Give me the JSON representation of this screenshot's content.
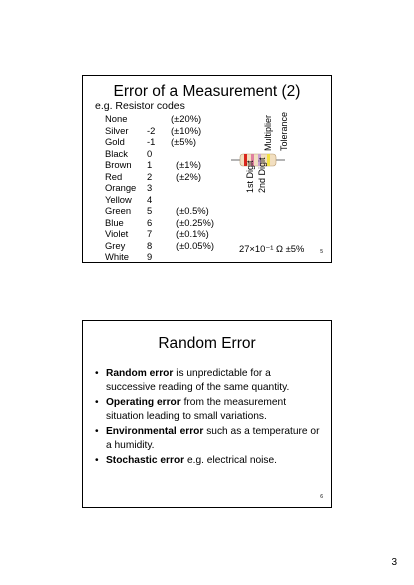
{
  "slide1": {
    "title": "Error of a Measurement (2)",
    "subtitle": "e.g. Resistor codes",
    "codes": [
      {
        "name": "None",
        "digit": "",
        "tolerance": "(±20%)"
      },
      {
        "name": "Silver",
        "digit": "-2",
        "tolerance": "(±10%)"
      },
      {
        "name": "Gold",
        "digit": "-1",
        "tolerance": "(±5%)"
      },
      {
        "name": "Black",
        "digit": "0",
        "tolerance": ""
      },
      {
        "name": "Brown",
        "digit": "1",
        "tolerance": "(±1%)"
      },
      {
        "name": "Red",
        "digit": "2",
        "tolerance": "(±2%)"
      },
      {
        "name": "Orange",
        "digit": "3",
        "tolerance": ""
      },
      {
        "name": "Yellow",
        "digit": "4",
        "tolerance": ""
      },
      {
        "name": "Green",
        "digit": "5",
        "tolerance": "(±0.5%)"
      },
      {
        "name": "Blue",
        "digit": "6",
        "tolerance": "(±0.25%)"
      },
      {
        "name": "Violet",
        "digit": "7",
        "tolerance": "(±0.1%)"
      },
      {
        "name": "Grey",
        "digit": "8",
        "tolerance": "(±0.05%)"
      },
      {
        "name": "White",
        "digit": "9",
        "tolerance": ""
      }
    ],
    "diagram_labels": {
      "first_digit": "1st Digit",
      "second_digit": "2nd Digit",
      "multiplier": "Multiplier",
      "tolerance": "Tolerance"
    },
    "equation": "27×10⁻¹ Ω ±5%",
    "slide_number": "5",
    "colors": {
      "band1": "#d9261c",
      "band2": "#e080a0",
      "band3": "#c8a0d0",
      "band4": "#f2e040",
      "body": "#f2dfc0",
      "lead": "#9a9a9a"
    }
  },
  "slide2": {
    "title": "Random Error",
    "bullets": [
      {
        "bold": "Random error",
        "rest": " is unpredictable for a successive reading of the same quantity."
      },
      {
        "bold": "Operating error",
        "rest": " from the measurement situation leading to small variations."
      },
      {
        "bold": "Environmental error",
        "rest": " such as a temperature or a humidity."
      },
      {
        "bold": "Stochastic error",
        "rest": " e.g. electrical noise."
      }
    ],
    "slide_number": "6"
  },
  "page_number": "3"
}
